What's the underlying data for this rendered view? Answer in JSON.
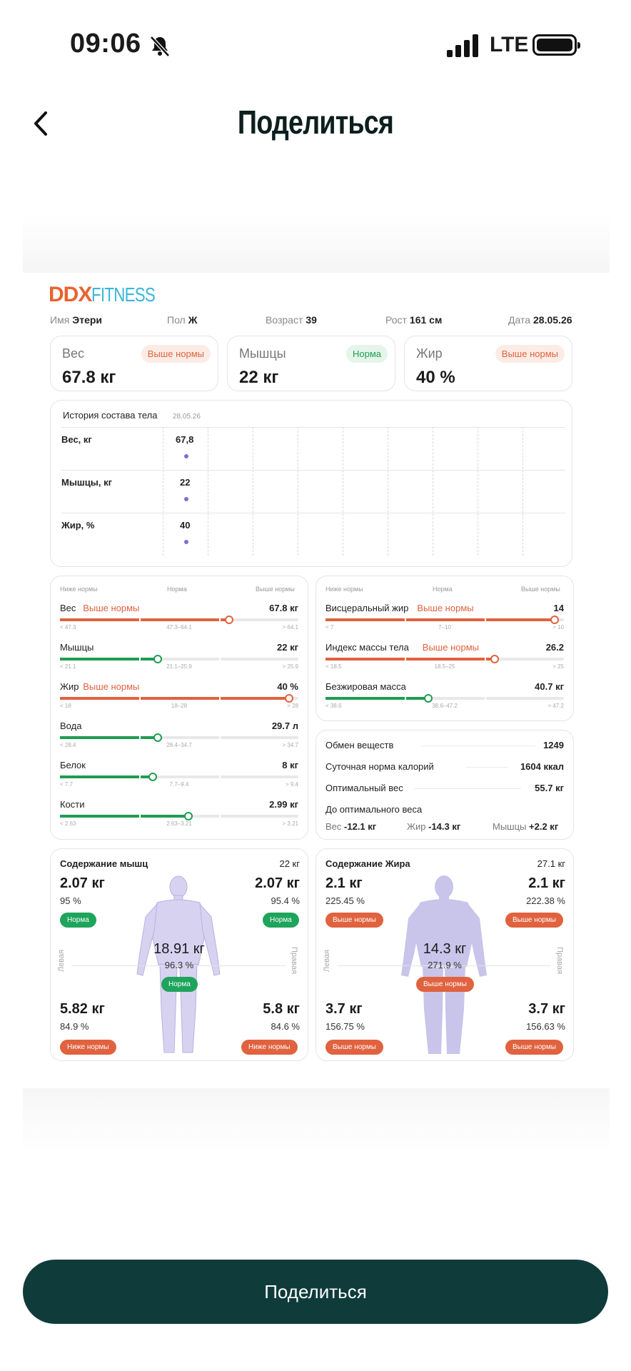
{
  "status": {
    "time": "09:06",
    "network": "LTE"
  },
  "header": {
    "title": "Поделиться"
  },
  "logo": {
    "ddx": "DDX",
    "fitness": "FITNESS"
  },
  "profile": [
    {
      "label": "Имя",
      "value": "Этери"
    },
    {
      "label": "Пол",
      "value": "Ж"
    },
    {
      "label": "Возраст",
      "value": "39"
    },
    {
      "label": "Рост",
      "value": "161 см"
    },
    {
      "label": "Дата",
      "value": "28.05.26"
    }
  ],
  "tiles": [
    {
      "label": "Вес",
      "value": "67.8 кг",
      "badge": "Выше нормы",
      "status": "red"
    },
    {
      "label": "Мышцы",
      "value": "22 кг",
      "badge": "Норма",
      "status": "green"
    },
    {
      "label": "Жир",
      "value": "40 %",
      "badge": "Выше нормы",
      "status": "red"
    }
  ],
  "history": {
    "title": "История состава тела",
    "date": "28.05.26",
    "rows": [
      {
        "label": "Вес, кг",
        "value": "67,8"
      },
      {
        "label": "Мышцы, кг",
        "value": "22"
      },
      {
        "label": "Жир, %",
        "value": "40"
      }
    ]
  },
  "scale_headers": {
    "low": "Ниже нормы",
    "norm": "Норма",
    "high": "Выше нормы"
  },
  "metrics_left": [
    {
      "label": "Вес",
      "flag": "Выше нормы",
      "value": "67.8 кг",
      "low": "< 47.3",
      "mid": "47.3–64.1",
      "high": "> 64.1",
      "level": 0.71,
      "status": "red"
    },
    {
      "label": "Мышцы",
      "flag": "",
      "value": "22 кг",
      "low": "< 21.1",
      "mid": "21.1–25.9",
      "high": "> 25.9",
      "level": 0.41,
      "status": "green"
    },
    {
      "label": "Жир",
      "flag": "Выше нормы",
      "value": "40 %",
      "low": "< 18",
      "mid": "18–28",
      "high": "> 28",
      "level": 0.96,
      "status": "red"
    },
    {
      "label": "Вода",
      "flag": "",
      "value": "29.7 л",
      "low": "< 28.4",
      "mid": "28.4–34.7",
      "high": "> 34.7",
      "level": 0.41,
      "status": "green"
    },
    {
      "label": "Белок",
      "flag": "",
      "value": "8 кг",
      "low": "< 7.7",
      "mid": "7.7–9.4",
      "high": "> 9.4",
      "level": 0.39,
      "status": "green"
    },
    {
      "label": "Кости",
      "flag": "",
      "value": "2.99 кг",
      "low": "< 2.63",
      "mid": "2.63–3.21",
      "high": "> 3.21",
      "level": 0.54,
      "status": "green"
    }
  ],
  "metrics_right": [
    {
      "label": "Висцеральный жир",
      "flag": "Выше нормы",
      "value": "14",
      "low": "< 7",
      "mid": "7–10",
      "high": "> 10",
      "level": 0.96,
      "status": "red"
    },
    {
      "label": "Индекс массы тела",
      "flag": "Выше нормы",
      "value": "26.2",
      "low": "< 18.5",
      "mid": "18.5–25",
      "high": "> 25",
      "level": 0.71,
      "status": "red"
    },
    {
      "label": "Безжировая масса",
      "flag": "",
      "value": "40.7 кг",
      "low": "< 38.6",
      "mid": "38.6–47.2",
      "high": "> 47.2",
      "level": 0.43,
      "status": "green"
    }
  ],
  "info": {
    "rows": [
      {
        "label": "Обмен веществ",
        "value": "1249"
      },
      {
        "label": "Суточная норма калорий",
        "value": "1604 ккал"
      },
      {
        "label": "Оптимальный вес",
        "value": "55.7 кг"
      }
    ],
    "to_optimal_label": "До оптимального веса",
    "to_optimal": [
      {
        "label": "Вес",
        "value": "-12.1 кг"
      },
      {
        "label": "Жир",
        "value": "-14.3 кг"
      },
      {
        "label": "Мышцы",
        "value": "+2.2 кг"
      }
    ]
  },
  "muscle": {
    "title": "Содержание мышц",
    "total": "22 кг",
    "left_arm": {
      "kg": "2.07 кг",
      "pct": "95 %",
      "badge": "Норма"
    },
    "right_arm": {
      "kg": "2.07 кг",
      "pct": "95.4 %",
      "badge": "Норма"
    },
    "trunk": {
      "kg": "18.91 кг",
      "pct": "96.3 %",
      "badge": "Норма"
    },
    "left_leg": {
      "kg": "5.82 кг",
      "pct": "84.9 %",
      "badge": "Ниже нормы"
    },
    "right_leg": {
      "kg": "5.8 кг",
      "pct": "84.6 %",
      "badge": "Ниже нормы"
    },
    "side_left": "Левая",
    "side_right": "Правая"
  },
  "fat": {
    "title": "Содержание Жира",
    "total": "27.1 кг",
    "left_arm": {
      "kg": "2.1 кг",
      "pct": "225.45 %",
      "badge": "Выше нормы"
    },
    "right_arm": {
      "kg": "2.1 кг",
      "pct": "222.38 %",
      "badge": "Выше нормы"
    },
    "trunk": {
      "kg": "14.3 кг",
      "pct": "271.9 %",
      "badge": "Выше нормы"
    },
    "left_leg": {
      "kg": "3.7 кг",
      "pct": "156.75 %",
      "badge": "Выше нормы"
    },
    "right_leg": {
      "kg": "3.7 кг",
      "pct": "156.63 %",
      "badge": "Выше нормы"
    },
    "side_left": "Левая",
    "side_right": "Правая"
  },
  "footer": {
    "share_label": "Поделиться"
  },
  "colors": {
    "accent": "#0f3b3b",
    "red": "#e0623f",
    "green": "#1f9c52",
    "body": "#c9c4ea"
  }
}
